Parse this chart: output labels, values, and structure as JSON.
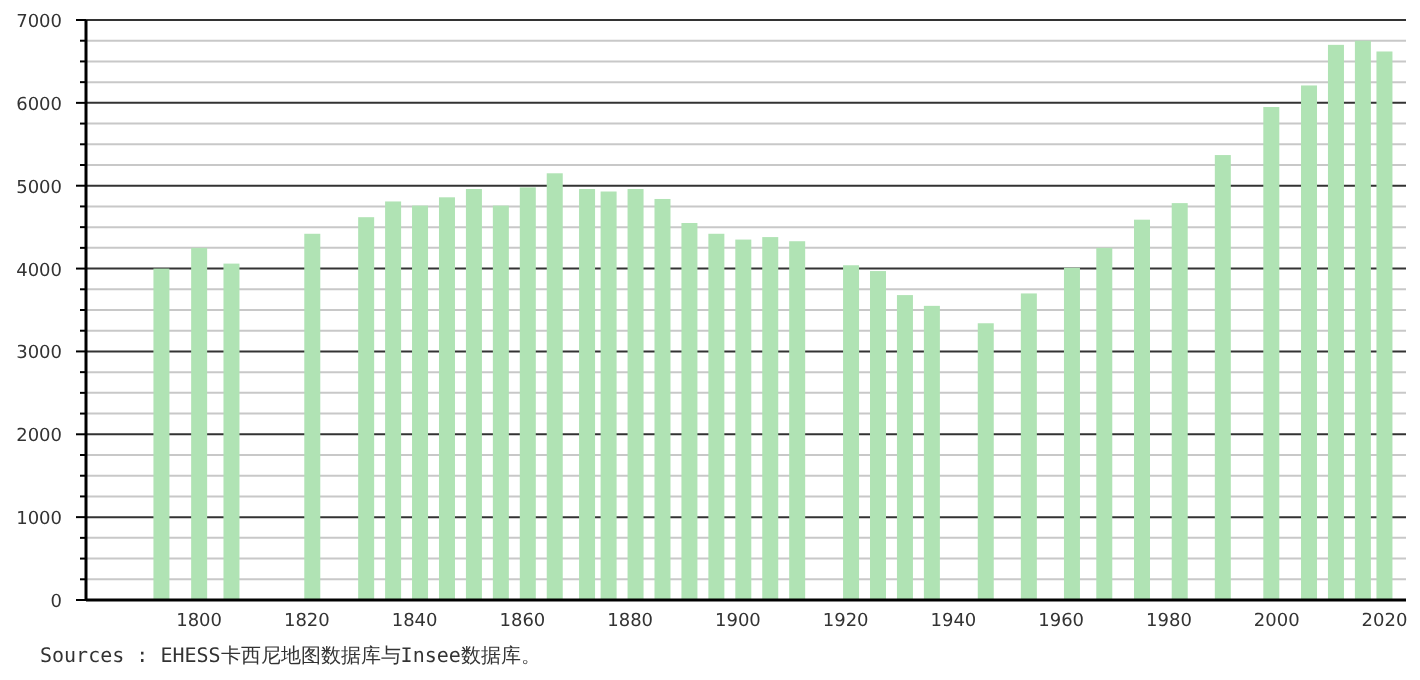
{
  "chart_data": {
    "type": "bar",
    "x": [
      1793,
      1800,
      1806,
      1821,
      1831,
      1836,
      1841,
      1846,
      1851,
      1856,
      1861,
      1866,
      1872,
      1876,
      1881,
      1886,
      1891,
      1896,
      1901,
      1906,
      1911,
      1921,
      1926,
      1931,
      1936,
      1946,
      1954,
      1962,
      1968,
      1975,
      1982,
      1990,
      1999,
      2006,
      2011,
      2016,
      2020
    ],
    "values": [
      4000,
      4250,
      4060,
      4420,
      4620,
      4810,
      4760,
      4860,
      4960,
      4760,
      4980,
      5150,
      4960,
      4930,
      4960,
      4840,
      4550,
      4420,
      4350,
      4380,
      4330,
      4040,
      3970,
      3680,
      3550,
      3340,
      3700,
      4010,
      4250,
      4590,
      4790,
      5370,
      5950,
      6210,
      6700,
      6750,
      6620
    ],
    "color": "#b0e3b4",
    "xlim": [
      1779,
      2024
    ],
    "xticks": [
      1800,
      1820,
      1840,
      1860,
      1880,
      1900,
      1920,
      1940,
      1960,
      1980,
      2000,
      2020
    ],
    "ylim": [
      0,
      7000
    ],
    "yticks": [
      0,
      1000,
      2000,
      3000,
      4000,
      5000,
      6000,
      7000
    ],
    "grid": "y",
    "annotations": [
      "Sources : EHESS卡西尼地图数据库与Insee数据库。"
    ]
  }
}
